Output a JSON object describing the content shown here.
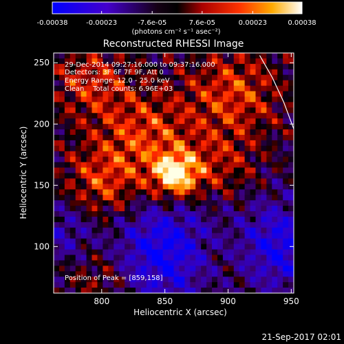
{
  "colorbar": {
    "tick_labels": [
      "-0.00038",
      "-0.00023",
      "-7.6e-05",
      "7.6e-05",
      "0.00023",
      "0.00038"
    ],
    "tick_values": [
      -0.00038,
      -0.00023,
      -7.6e-05,
      7.6e-05,
      0.00023,
      0.00038
    ],
    "range": [
      -0.00038,
      0.00038
    ],
    "units_label": "(photons cm⁻² s⁻¹ asec⁻²)"
  },
  "chart_data": {
    "type": "heatmap",
    "title": "Reconstructed RHESSI Image",
    "xlabel": "Heliocentric X (arcsec)",
    "ylabel": "Heliocentric Y (arcsec)",
    "xlim": [
      762,
      952
    ],
    "ylim": [
      62,
      258
    ],
    "xticks": [
      800,
      850,
      900,
      950
    ],
    "yticks": [
      100,
      150,
      200,
      250
    ],
    "colormap": "blue-purple-black-red-orange-yellow-white",
    "peak": [
      859,
      158
    ],
    "limb_arc": [
      [
        952,
        196
      ],
      [
        944,
        218
      ],
      [
        935,
        238
      ],
      [
        925,
        256
      ]
    ],
    "info_lines": [
      "29-Dec-2014 09:27:16.000 to 09:37:16.000",
      "Detectors: 3F 6F 7F 9F, Att 0",
      "Energy Range: 12.0 - 25.0 keV",
      "Clean    Total counts: 6.96E+03"
    ],
    "peak_label": "Position of Peak = [859,158]"
  },
  "footer": {
    "date": "21-Sep-2017 02:01"
  }
}
